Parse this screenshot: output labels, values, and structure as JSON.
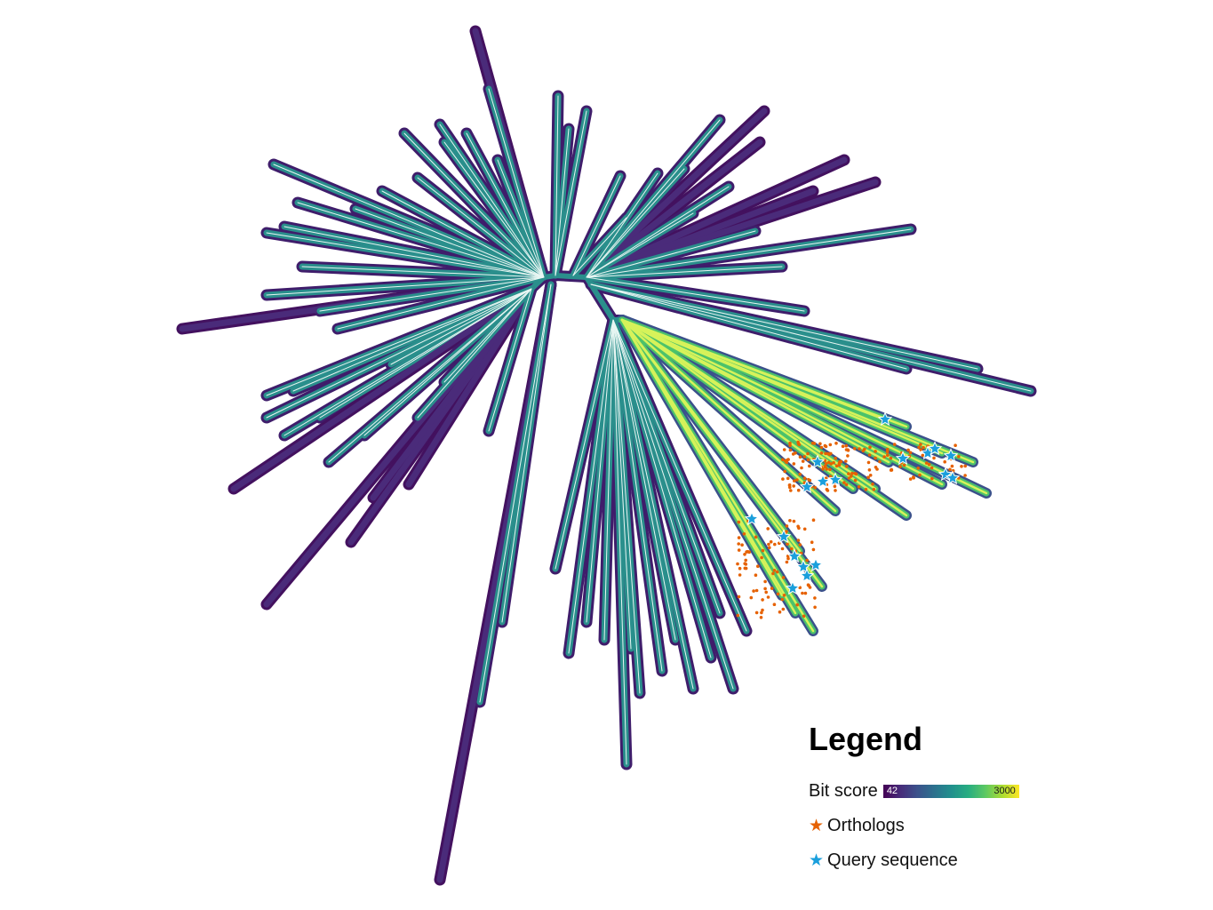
{
  "legend": {
    "title": "Legend",
    "bit_score_label": "Bit score",
    "bit_score_min": "42",
    "bit_score_max": "3000",
    "orthologs_label": "Orthologs",
    "query_label": "Query sequence"
  },
  "colors": {
    "viridis": [
      "#440154",
      "#472c7a",
      "#3b518b",
      "#2c718e",
      "#21908d",
      "#27ad81",
      "#5cc863",
      "#aadc32",
      "#fde725"
    ],
    "ortholog_star": "#e66101",
    "query_star": "#1a9fdc",
    "branch_outline": "#3f1d6b",
    "branch_fill": "#2a8f8c",
    "branch_highlight": "#d6f25a"
  },
  "icons": {
    "ortholog": "star-icon",
    "query": "star-icon"
  }
}
